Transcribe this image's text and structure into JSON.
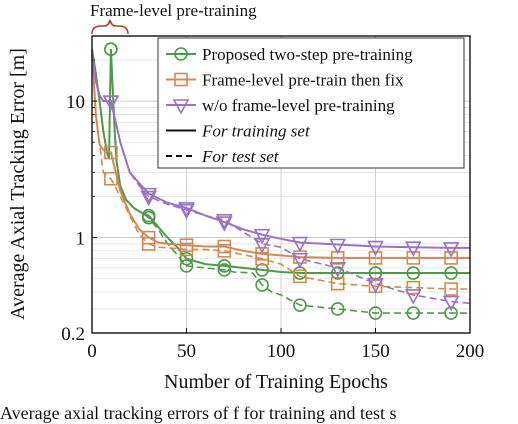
{
  "chart_data": {
    "type": "line",
    "annotation": "Frame-level pre-training",
    "xlabel": "Number of Training Epochs",
    "ylabel": "Average Axial Tracking Error [m]",
    "xlim": [
      0,
      200
    ],
    "ylim": [
      0.2,
      30
    ],
    "yscale": "log",
    "grid": true,
    "legend_position": "top-right",
    "x_ticks": [
      0,
      50,
      100,
      150,
      200
    ],
    "y_ticks": [
      0.2,
      1,
      10
    ],
    "x_tick_labels": [
      "0",
      "50",
      "100",
      "150",
      "200"
    ],
    "y_tick_labels": [
      "0.2",
      "1",
      "10"
    ],
    "series": [
      {
        "name": "Proposed two-step pre-training",
        "color": "#4e9a4a",
        "marker": "circle",
        "train": [
          [
            0,
            24
          ],
          [
            2,
            16
          ],
          [
            4,
            10
          ],
          [
            6,
            6
          ],
          [
            8,
            4.2
          ],
          [
            9,
            3.8
          ],
          [
            10,
            24
          ],
          [
            11,
            12
          ],
          [
            12,
            6
          ],
          [
            13,
            3.6
          ],
          [
            15,
            2.4
          ],
          [
            18,
            1.9
          ],
          [
            22,
            1.65
          ],
          [
            27,
            1.5
          ],
          [
            30,
            1.45
          ],
          [
            35,
            1.2
          ],
          [
            40,
            1
          ],
          [
            45,
            0.85
          ],
          [
            50,
            0.7
          ],
          [
            60,
            0.64
          ],
          [
            70,
            0.62
          ],
          [
            80,
            0.6
          ],
          [
            90,
            0.58
          ],
          [
            100,
            0.56
          ],
          [
            110,
            0.55
          ],
          [
            130,
            0.55
          ],
          [
            150,
            0.55
          ],
          [
            170,
            0.55
          ],
          [
            190,
            0.55
          ],
          [
            200,
            0.55
          ]
        ],
        "test": [
          [
            0,
            24
          ],
          [
            2,
            16
          ],
          [
            4,
            10
          ],
          [
            6,
            6
          ],
          [
            8,
            4.2
          ],
          [
            9,
            3.8
          ],
          [
            10,
            24
          ],
          [
            11,
            12
          ],
          [
            12,
            6
          ],
          [
            13,
            3.6
          ],
          [
            15,
            2.4
          ],
          [
            18,
            1.9
          ],
          [
            22,
            1.65
          ],
          [
            27,
            1.5
          ],
          [
            30,
            1.4
          ],
          [
            35,
            1.15
          ],
          [
            40,
            0.9
          ],
          [
            45,
            0.75
          ],
          [
            50,
            0.62
          ],
          [
            60,
            0.6
          ],
          [
            70,
            0.58
          ],
          [
            75,
            0.56
          ],
          [
            85,
            0.55
          ],
          [
            90,
            0.45
          ],
          [
            95,
            0.4
          ],
          [
            100,
            0.38
          ],
          [
            110,
            0.32
          ],
          [
            120,
            0.31
          ],
          [
            130,
            0.3
          ],
          [
            140,
            0.29
          ],
          [
            150,
            0.28
          ],
          [
            170,
            0.28
          ],
          [
            190,
            0.28
          ],
          [
            200,
            0.28
          ]
        ]
      },
      {
        "name": "Frame-level pre-train then fix",
        "color": "#d18a54",
        "marker": "square",
        "train": [
          [
            0,
            24
          ],
          [
            2,
            8
          ],
          [
            4,
            4.8
          ],
          [
            6,
            4.4
          ],
          [
            8,
            4.3
          ],
          [
            10,
            4.2
          ],
          [
            15,
            2.2
          ],
          [
            20,
            1.5
          ],
          [
            25,
            1.15
          ],
          [
            30,
            1
          ],
          [
            35,
            0.92
          ],
          [
            40,
            0.9
          ],
          [
            50,
            0.88
          ],
          [
            60,
            0.86
          ],
          [
            70,
            0.86
          ],
          [
            80,
            0.8
          ],
          [
            90,
            0.76
          ],
          [
            100,
            0.74
          ],
          [
            110,
            0.72
          ],
          [
            130,
            0.71
          ],
          [
            150,
            0.71
          ],
          [
            170,
            0.71
          ],
          [
            190,
            0.71
          ],
          [
            200,
            0.71
          ]
        ],
        "test": [
          [
            0,
            24
          ],
          [
            2,
            8
          ],
          [
            4,
            4.8
          ],
          [
            6,
            3
          ],
          [
            8,
            2.8
          ],
          [
            10,
            2.7
          ],
          [
            15,
            2
          ],
          [
            20,
            1.45
          ],
          [
            25,
            1.05
          ],
          [
            30,
            0.9
          ],
          [
            35,
            0.85
          ],
          [
            40,
            0.84
          ],
          [
            50,
            0.82
          ],
          [
            60,
            0.82
          ],
          [
            70,
            0.8
          ],
          [
            80,
            0.75
          ],
          [
            90,
            0.7
          ],
          [
            100,
            0.64
          ],
          [
            110,
            0.52
          ],
          [
            130,
            0.46
          ],
          [
            150,
            0.44
          ],
          [
            170,
            0.43
          ],
          [
            190,
            0.42
          ],
          [
            200,
            0.42
          ]
        ]
      },
      {
        "name": "w/o frame-level pre-training",
        "color": "#9b72c4",
        "marker": "triangle",
        "train": [
          [
            0,
            22
          ],
          [
            2,
            14
          ],
          [
            4,
            11
          ],
          [
            6,
            10
          ],
          [
            8,
            10
          ],
          [
            10,
            10
          ],
          [
            15,
            5
          ],
          [
            20,
            3
          ],
          [
            25,
            2.5
          ],
          [
            30,
            2.1
          ],
          [
            40,
            1.8
          ],
          [
            50,
            1.65
          ],
          [
            60,
            1.45
          ],
          [
            70,
            1.3
          ],
          [
            80,
            1.15
          ],
          [
            90,
            1.05
          ],
          [
            100,
            0.98
          ],
          [
            110,
            0.92
          ],
          [
            130,
            0.89
          ],
          [
            150,
            0.86
          ],
          [
            170,
            0.85
          ],
          [
            190,
            0.84
          ],
          [
            200,
            0.84
          ]
        ],
        "test": [
          [
            0,
            22
          ],
          [
            2,
            14
          ],
          [
            4,
            11
          ],
          [
            6,
            10
          ],
          [
            8,
            10
          ],
          [
            10,
            10
          ],
          [
            15,
            5
          ],
          [
            20,
            3
          ],
          [
            25,
            2.4
          ],
          [
            30,
            2
          ],
          [
            40,
            1.75
          ],
          [
            50,
            1.6
          ],
          [
            60,
            1.45
          ],
          [
            70,
            1.35
          ],
          [
            80,
            1.1
          ],
          [
            90,
            0.9
          ],
          [
            100,
            0.85
          ],
          [
            110,
            0.7
          ],
          [
            130,
            0.6
          ],
          [
            150,
            0.46
          ],
          [
            170,
            0.38
          ],
          [
            190,
            0.34
          ],
          [
            200,
            0.33
          ]
        ]
      }
    ],
    "line_styles": [
      {
        "label": "For training set",
        "dash": "solid"
      },
      {
        "label": "For test set",
        "dash": "dashed"
      }
    ]
  },
  "caption": "Average axial tracking errors of f for training and test s"
}
